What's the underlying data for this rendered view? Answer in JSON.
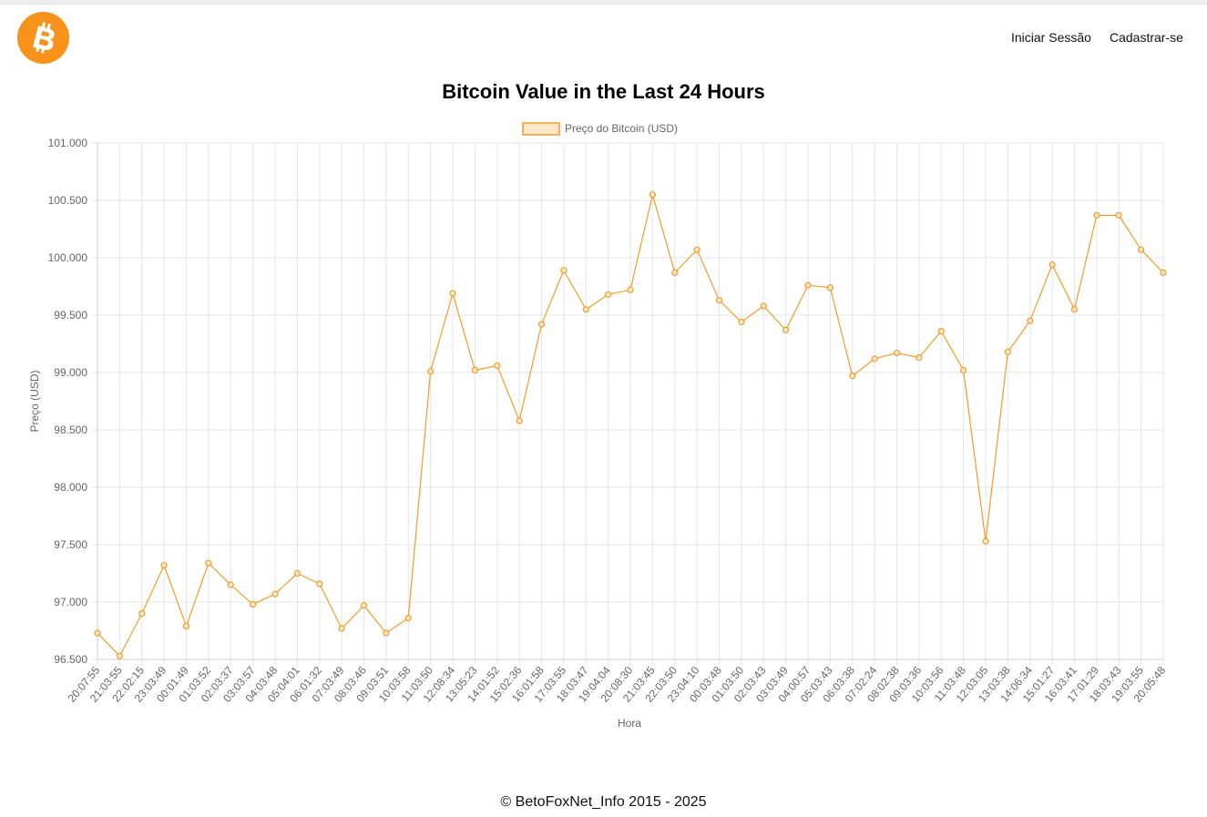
{
  "header": {
    "logo_icon": "bitcoin-logo-icon",
    "logo_color": "#f7931a",
    "nav": {
      "login_label": "Iniciar Sessão",
      "signup_label": "Cadastrar-se"
    }
  },
  "page": {
    "title": "Bitcoin Value in the Last 24 Hours"
  },
  "chart_data": {
    "type": "line",
    "title": "",
    "xlabel": "Hora",
    "ylabel": "Preço (USD)",
    "ylim": [
      96500,
      101000
    ],
    "y_ticks": [
      "101.000",
      "100.500",
      "100.000",
      "99.500",
      "99.000",
      "98.500",
      "98.000",
      "97.500",
      "97.000",
      "96.500"
    ],
    "y_tick_values": [
      101000,
      100500,
      100000,
      99500,
      99000,
      98500,
      98000,
      97500,
      97000,
      96500
    ],
    "grid": true,
    "legend_position": "top-center",
    "line_color": "#f29c27",
    "fill_color": "#fde7cc",
    "categories": [
      "20:07:55",
      "21:03:55",
      "22:02:15",
      "23:03:49",
      "00:01:49",
      "01:03:52",
      "02:03:37",
      "03:03:57",
      "04:03:48",
      "05:04:01",
      "06:01:32",
      "07:03:49",
      "08:03:46",
      "09:03:51",
      "10:03:58",
      "11:03:50",
      "12:08:34",
      "13:05:23",
      "14:01:52",
      "15:02:36",
      "16:01:58",
      "17:03:55",
      "18:03:47",
      "19:04:04",
      "20:08:30",
      "21:03:45",
      "22:03:50",
      "23:04:10",
      "00:03:48",
      "01:03:50",
      "02:03:43",
      "03:03:49",
      "04:00:57",
      "05:03:43",
      "06:03:38",
      "07:02:24",
      "08:02:38",
      "09:03:36",
      "10:03:56",
      "11:03:48",
      "12:03:05",
      "13:03:38",
      "14:06:34",
      "15:01:27",
      "16:03:41",
      "17:01:29",
      "18:03:43",
      "19:03:55",
      "20:05:48"
    ],
    "series": [
      {
        "name": "Preço do Bitcoin (USD)",
        "values": [
          96730,
          96530,
          96900,
          97320,
          96790,
          97340,
          97150,
          96980,
          97070,
          97250,
          97160,
          96770,
          96970,
          96730,
          96860,
          99010,
          99690,
          99020,
          99060,
          98580,
          99420,
          99890,
          99550,
          99680,
          99720,
          100550,
          99870,
          100070,
          99630,
          99440,
          99580,
          99370,
          99760,
          99740,
          98970,
          99120,
          99170,
          99130,
          99360,
          99020,
          97530,
          99180,
          99450,
          99940,
          99550,
          100370,
          100370,
          100070,
          99870
        ]
      }
    ]
  },
  "footer": {
    "text": "© BetoFoxNet_Info 2015 - 2025"
  }
}
